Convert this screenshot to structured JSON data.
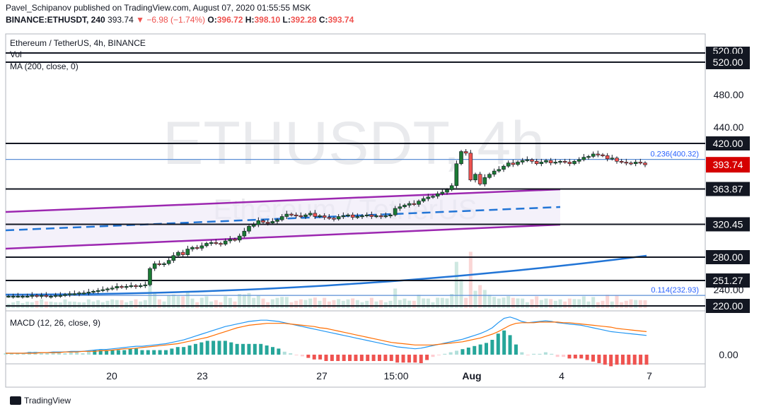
{
  "header": {
    "line1": "Pavel_Schipanov published on TradingView.com, August 07, 2020 01:55:55 MSK",
    "symbol": "BINANCE:ETHUSDT, 240",
    "last": "393.74",
    "change": "−6.98 (−1.74%)",
    "o_label": "O:",
    "o": "396.72",
    "h_label": "H:",
    "h": "398.10",
    "l_label": "L:",
    "l": "392.28",
    "c_label": "C:",
    "c": "393.74"
  },
  "legend": {
    "title": "Ethereum / TetherUS, 4h, BINANCE",
    "vol": "Vol",
    "ma": "MA (200, close, 0)",
    "macd": "MACD (12, 26, close, 9)"
  },
  "watermark": {
    "big": "ETHUSDT, 4h",
    "small": "Ethereum / TetherUS"
  },
  "footer": {
    "brand": "TradingView"
  },
  "colors": {
    "up": "#26a69a",
    "down": "#ef5350",
    "candle_up_body": "#1b7a34",
    "level": "#131722",
    "fib": "#2962ff",
    "ma": "#2275d6",
    "channel": "#9c27b0",
    "macd": "#2196f3",
    "signal": "#ff6d00",
    "last_price_bg": "#d50000"
  },
  "chart_data": {
    "type": "candlestick",
    "symbol": "BINANCE:ETHUSDT",
    "timeframe": "4h",
    "x_ticks": [
      "20",
      "23",
      "27",
      "15:00",
      "Aug",
      "4",
      "7"
    ],
    "y_ticks": [
      520,
      480,
      440,
      240,
      0
    ],
    "price_levels": [
      {
        "value": 520.0,
        "label": "520.00"
      },
      {
        "value": 420.0,
        "label": "420.00"
      },
      {
        "value": 363.87,
        "label": "363.87"
      },
      {
        "value": 320.45,
        "label": "320.45"
      },
      {
        "value": 280.0,
        "label": "280.00"
      },
      {
        "value": 251.27,
        "label": "251.27"
      },
      {
        "value": 220.0,
        "label": "220.00"
      }
    ],
    "fib_levels": [
      {
        "ratio": 0.236,
        "value": 400.32,
        "label": "0.236(400.32)"
      },
      {
        "ratio": 0.114,
        "value": 232.93,
        "label": "0.114(232.93)"
      }
    ],
    "last_price": {
      "value": 393.74,
      "label": "393.74"
    },
    "macd_zero_label": "0.00",
    "closes": [
      232,
      232,
      232,
      232,
      232,
      233,
      232,
      233,
      232,
      232,
      233,
      233,
      234,
      235,
      235,
      236,
      236,
      237,
      238,
      239,
      240,
      241,
      242,
      244,
      243,
      244,
      245,
      244,
      245,
      246,
      266,
      272,
      271,
      272,
      276,
      282,
      286,
      283,
      290,
      292,
      291,
      294,
      297,
      298,
      297,
      296,
      300,
      302,
      301,
      306,
      312,
      318,
      320,
      325,
      323,
      322,
      324,
      326,
      330,
      333,
      332,
      331,
      330,
      332,
      334,
      330,
      331,
      329,
      328,
      327,
      330,
      331,
      332,
      329,
      330,
      331,
      332,
      330,
      331,
      330,
      331,
      332,
      340,
      342,
      344,
      346,
      345,
      349,
      352,
      354,
      355,
      358,
      360,
      363,
      368,
      395,
      410,
      408,
      375,
      382,
      370,
      378,
      382,
      386,
      388,
      392,
      396,
      394,
      397,
      399,
      400,
      398,
      395,
      397,
      399,
      396,
      397,
      398,
      397,
      395,
      398,
      400,
      403,
      404,
      407,
      406,
      405,
      401,
      402,
      398,
      397,
      396,
      395,
      397,
      396,
      393.74
    ],
    "macd": [
      0,
      0,
      0,
      0,
      1,
      1,
      1,
      1,
      2,
      2,
      2,
      3,
      3,
      3,
      4,
      5,
      6,
      6,
      7,
      8,
      9,
      10,
      11,
      11,
      12,
      13,
      14,
      15,
      17,
      19,
      21,
      24,
      27,
      30,
      33,
      36,
      39,
      42,
      44,
      46,
      48,
      50,
      51,
      52,
      52,
      51,
      50,
      48,
      46,
      44,
      42,
      40,
      38,
      36,
      34,
      32,
      30,
      28,
      26,
      24,
      22,
      20,
      18,
      16,
      14,
      12,
      10,
      9,
      8,
      7,
      8,
      10,
      12,
      14,
      16,
      18,
      20,
      22,
      25,
      28,
      31,
      35,
      40,
      48,
      55,
      57,
      54,
      50,
      48,
      49,
      50,
      51,
      50,
      48,
      47,
      46,
      45,
      44,
      42,
      40,
      38,
      36,
      34,
      33,
      32,
      31,
      30,
      29,
      28
    ],
    "signal": [
      0,
      0,
      0,
      0,
      0,
      0,
      1,
      1,
      1,
      1,
      2,
      2,
      2,
      3,
      3,
      3,
      4,
      4,
      5,
      6,
      7,
      7,
      8,
      9,
      10,
      11,
      12,
      13,
      14,
      15,
      17,
      19,
      21,
      23,
      25,
      28,
      31,
      34,
      37,
      40,
      42,
      44,
      45,
      46,
      47,
      47,
      47,
      47,
      46,
      45,
      44,
      43,
      42,
      40,
      39,
      37,
      35,
      33,
      31,
      29,
      27,
      25,
      23,
      21,
      19,
      17,
      16,
      15,
      14,
      13,
      13,
      13,
      13,
      14,
      15,
      16,
      17,
      18,
      20,
      22,
      24,
      27,
      30,
      34,
      39,
      44,
      47,
      48,
      48,
      48,
      49,
      49,
      49,
      49,
      48,
      48,
      47,
      46,
      45,
      44,
      43,
      42,
      41,
      39,
      38,
      37,
      36,
      35,
      34
    ]
  }
}
